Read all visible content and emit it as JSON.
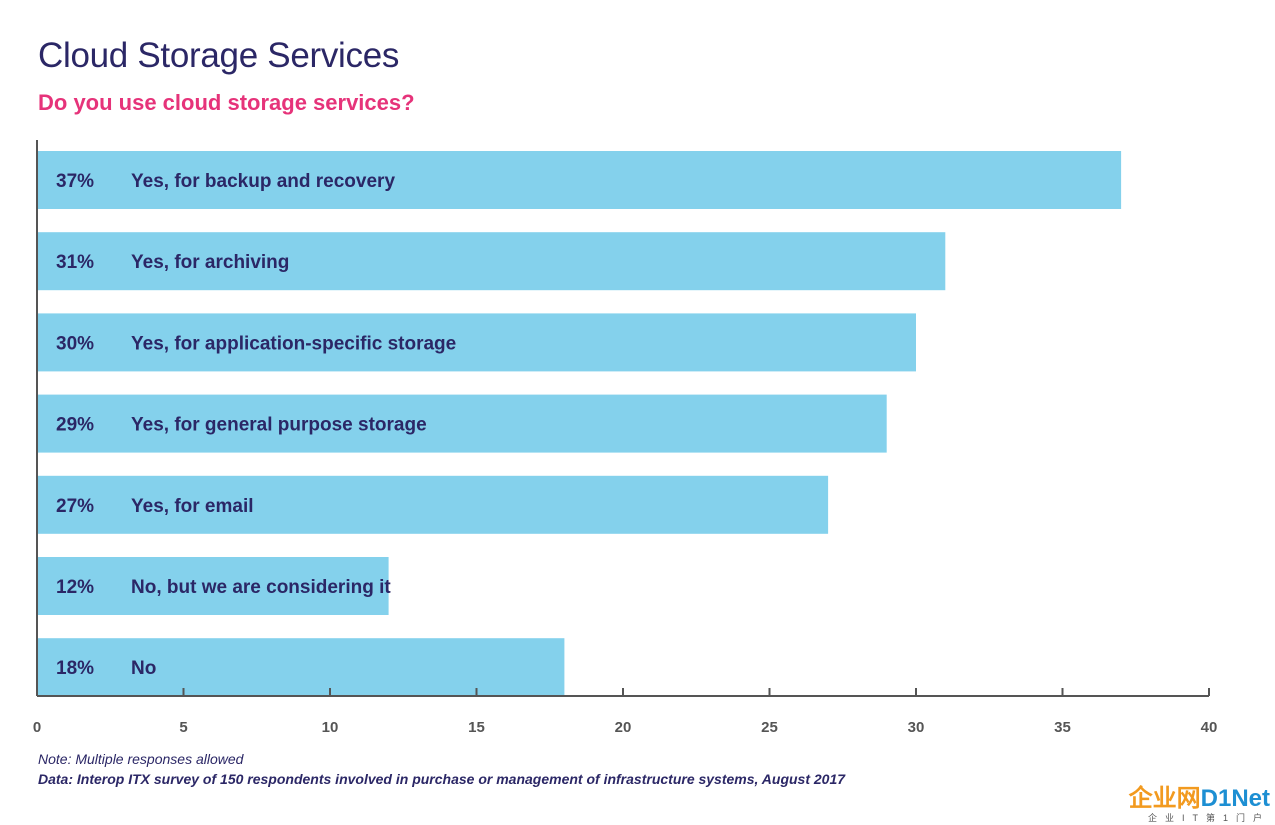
{
  "title": "Cloud Storage Services",
  "subtitle": "Do you use cloud storage services?",
  "note": "Note: Multiple responses allowed",
  "source": "Data: Interop ITX survey of 150 respondents involved in purchase or management of infrastructure systems, August 2017",
  "watermark": {
    "brand_a": "企业网",
    "brand_b": "D1Net",
    "tagline": "企业IT第1门户"
  },
  "colors": {
    "bar": "#84d1ec",
    "text": "#2b2766",
    "accent": "#e6337a",
    "axis": "#555555"
  },
  "chart_data": {
    "type": "bar",
    "orientation": "horizontal",
    "categories": [
      "Yes, for backup and recovery",
      "Yes, for archiving",
      "Yes, for application-specific storage",
      "Yes, for general purpose storage",
      "Yes, for email",
      "No, but we are considering it",
      "No"
    ],
    "value_labels": [
      "37%",
      "31%",
      "30%",
      "29%",
      "27%",
      "12%",
      "18%"
    ],
    "values": [
      37,
      31,
      30,
      29,
      27,
      12,
      18
    ],
    "xlim": [
      0,
      40
    ],
    "xticks": [
      0,
      5,
      10,
      15,
      20,
      25,
      30,
      35,
      40
    ],
    "grid": false,
    "legend": "none"
  }
}
